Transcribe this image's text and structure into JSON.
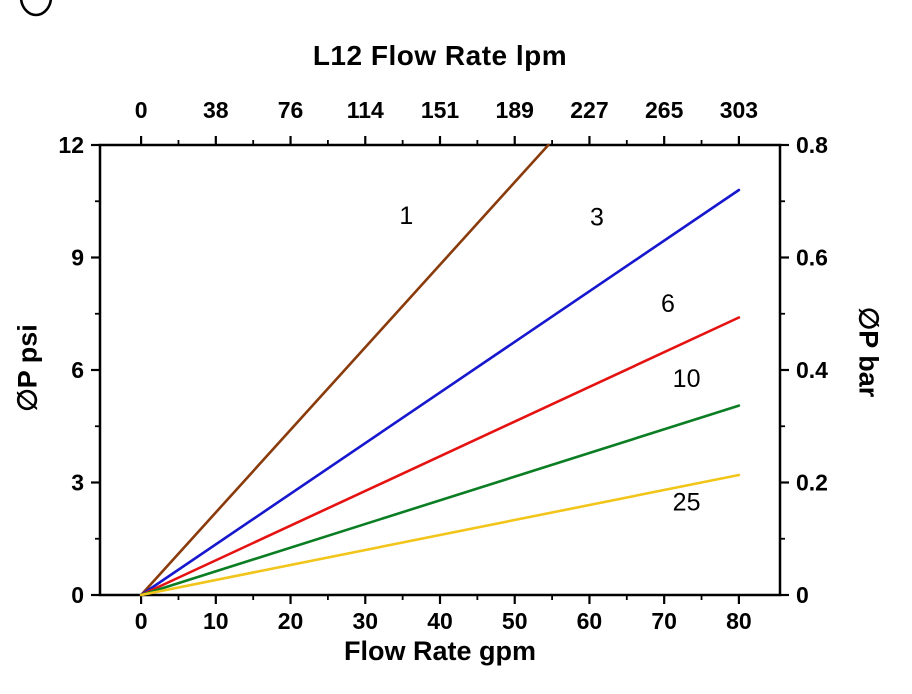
{
  "page": {
    "background": "#ffffff"
  },
  "decor": {
    "corner_glyph": "partial-ellipse-logo-fragment"
  },
  "chart_data": {
    "type": "line",
    "title": "L12 Flow Rate lpm",
    "xlabel": "Flow Rate gpm",
    "ylabel": "∅P psi",
    "axes": {
      "top": {
        "label": "L12 Flow Rate lpm",
        "ticks": [
          0,
          38,
          76,
          114,
          151,
          189,
          227,
          265,
          303
        ]
      },
      "bottom": {
        "label": "Flow Rate gpm",
        "ticks": [
          0,
          10,
          20,
          30,
          40,
          50,
          60,
          70,
          80
        ],
        "range": [
          -5.5,
          85.5
        ]
      },
      "left": {
        "label": "∅P psi",
        "ticks": [
          0,
          3,
          6,
          9,
          12
        ],
        "range": [
          0,
          12
        ]
      },
      "right": {
        "label": "∅P bar",
        "ticks": [
          0,
          0.2,
          0.4,
          0.6,
          0.8
        ],
        "range": [
          0,
          0.8
        ]
      }
    },
    "grid": false,
    "frame_color": "#000000",
    "line_width": 2.6,
    "series": [
      {
        "name": "1",
        "color": "#8a3b0c",
        "points": [
          [
            0,
            0
          ],
          [
            54.5,
            12
          ]
        ],
        "label_at": [
          35.5,
          9.9
        ]
      },
      {
        "name": "3",
        "color": "#1717cd",
        "points": [
          [
            0,
            0
          ],
          [
            80,
            10.8
          ]
        ],
        "label_at": [
          61,
          9.85
        ]
      },
      {
        "name": "6",
        "color": "#e51212",
        "points": [
          [
            0,
            0
          ],
          [
            80,
            7.4
          ]
        ],
        "label_at": [
          70.5,
          7.55
        ]
      },
      {
        "name": "10",
        "color": "#0b7d23",
        "points": [
          [
            0,
            0
          ],
          [
            80,
            5.05
          ]
        ],
        "label_at": [
          73,
          5.55
        ]
      },
      {
        "name": "25",
        "color": "#f2c51a",
        "points": [
          [
            0,
            0
          ],
          [
            80,
            3.2
          ]
        ],
        "label_at": [
          73,
          2.25
        ]
      }
    ]
  }
}
